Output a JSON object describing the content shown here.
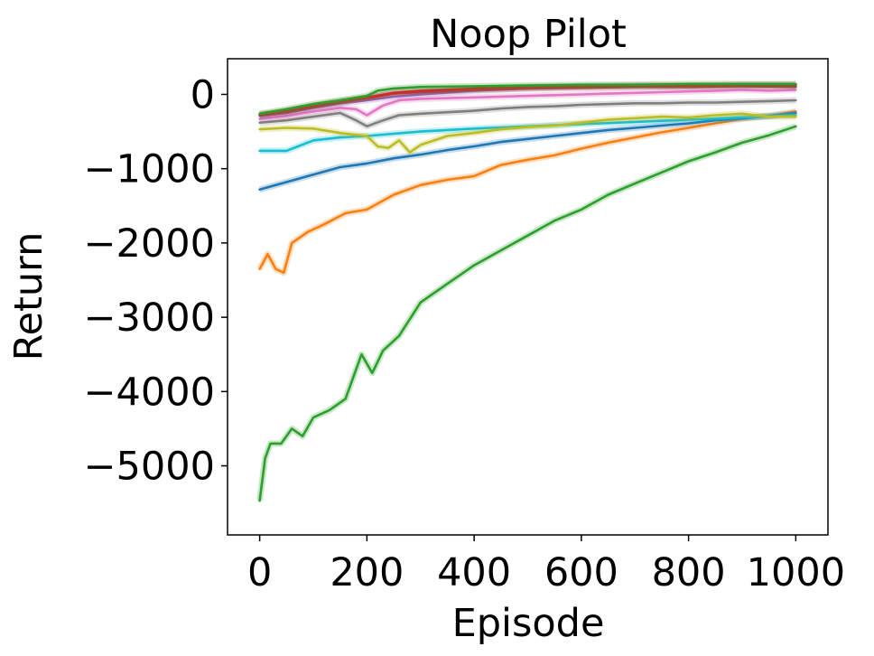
{
  "chart_data": {
    "type": "line",
    "title": "Noop Pilot",
    "xlabel": "Episode",
    "ylabel": "Return",
    "xlim": [
      -60,
      1060
    ],
    "ylim": [
      -5930,
      480
    ],
    "xticks": [
      0,
      200,
      400,
      600,
      800,
      1000
    ],
    "xtick_labels": [
      "0",
      "200",
      "400",
      "600",
      "800",
      "1000"
    ],
    "yticks": [
      0,
      -1000,
      -2000,
      -3000,
      -4000,
      -5000
    ],
    "ytick_labels": [
      "0",
      "−1000",
      "−2000",
      "−3000",
      "−4000",
      "−5000"
    ],
    "grid": false,
    "legend": "none",
    "series": [
      {
        "color": "#2ca02c",
        "x": [
          0,
          10,
          20,
          40,
          60,
          80,
          100,
          130,
          160,
          190,
          210,
          230,
          260,
          300,
          350,
          400,
          450,
          500,
          550,
          600,
          650,
          700,
          750,
          800,
          850,
          900,
          950,
          1000
        ],
        "y": [
          -5470,
          -4900,
          -4700,
          -4700,
          -4500,
          -4600,
          -4350,
          -4250,
          -4100,
          -3500,
          -3750,
          -3450,
          -3250,
          -2800,
          -2550,
          -2300,
          -2100,
          -1900,
          -1700,
          -1550,
          -1350,
          -1200,
          -1050,
          -900,
          -780,
          -650,
          -550,
          -430
        ]
      },
      {
        "color": "#ff7f0e",
        "x": [
          0,
          15,
          30,
          45,
          60,
          90,
          120,
          160,
          200,
          250,
          300,
          350,
          400,
          450,
          500,
          550,
          600,
          650,
          700,
          750,
          800,
          850,
          900,
          950,
          1000
        ],
        "y": [
          -2350,
          -2150,
          -2350,
          -2400,
          -2000,
          -1850,
          -1750,
          -1600,
          -1550,
          -1350,
          -1220,
          -1150,
          -1100,
          -950,
          -880,
          -820,
          -730,
          -650,
          -580,
          -510,
          -450,
          -390,
          -330,
          -290,
          -230
        ]
      },
      {
        "color": "#1f77b4",
        "x": [
          0,
          50,
          100,
          150,
          200,
          250,
          300,
          350,
          400,
          450,
          500,
          550,
          600,
          650,
          700,
          750,
          800,
          850,
          900,
          950,
          1000
        ],
        "y": [
          -1280,
          -1180,
          -1080,
          -980,
          -930,
          -860,
          -810,
          -750,
          -700,
          -640,
          -600,
          -560,
          -520,
          -480,
          -450,
          -420,
          -390,
          -350,
          -320,
          -290,
          -250
        ]
      },
      {
        "color": "#17becf",
        "x": [
          0,
          50,
          100,
          150,
          200,
          250,
          300,
          400,
          500,
          600,
          700,
          800,
          900,
          1000
        ],
        "y": [
          -760,
          -760,
          -620,
          -580,
          -560,
          -530,
          -500,
          -460,
          -430,
          -400,
          -370,
          -340,
          -310,
          -280
        ]
      },
      {
        "color": "#bcbd22",
        "x": [
          0,
          50,
          100,
          150,
          200,
          220,
          240,
          260,
          280,
          300,
          350,
          400,
          450,
          500,
          550,
          600,
          650,
          700,
          750,
          800,
          850,
          900,
          950,
          1000
        ],
        "y": [
          -470,
          -450,
          -460,
          -520,
          -560,
          -700,
          -720,
          -620,
          -780,
          -680,
          -560,
          -520,
          -470,
          -440,
          -420,
          -380,
          -340,
          -320,
          -300,
          -310,
          -280,
          -260,
          -300,
          -300
        ]
      },
      {
        "color": "#7f7f7f",
        "x": [
          0,
          50,
          100,
          150,
          180,
          200,
          230,
          260,
          300,
          350,
          400,
          450,
          500,
          550,
          600,
          650,
          700,
          750,
          800,
          850,
          900,
          950,
          1000
        ],
        "y": [
          -380,
          -350,
          -300,
          -250,
          -350,
          -430,
          -350,
          -280,
          -260,
          -240,
          -220,
          -190,
          -170,
          -160,
          -140,
          -130,
          -120,
          -120,
          -110,
          -110,
          -100,
          -90,
          -80
        ]
      },
      {
        "color": "#e377c2",
        "x": [
          0,
          50,
          100,
          150,
          180,
          200,
          230,
          260,
          300,
          350,
          400,
          450,
          500,
          550,
          600,
          650,
          700,
          750,
          800,
          850,
          900,
          950,
          1000
        ],
        "y": [
          -330,
          -290,
          -230,
          -180,
          -200,
          -280,
          -150,
          -80,
          -60,
          -50,
          -40,
          -30,
          -20,
          -10,
          0,
          10,
          20,
          30,
          40,
          50,
          60,
          50,
          60
        ]
      },
      {
        "color": "#9467bd",
        "x": [
          0,
          50,
          100,
          150,
          200,
          250,
          300,
          400,
          500,
          600,
          700,
          800,
          900,
          1000
        ],
        "y": [
          -290,
          -250,
          -180,
          -120,
          -80,
          -30,
          0,
          50,
          80,
          100,
          110,
          115,
          120,
          120
        ]
      },
      {
        "color": "#8c564b",
        "x": [
          0,
          50,
          100,
          150,
          200,
          250,
          300,
          400,
          500,
          600,
          700,
          800,
          900,
          1000
        ],
        "y": [
          -280,
          -240,
          -170,
          -110,
          -50,
          10,
          30,
          60,
          80,
          90,
          100,
          100,
          110,
          100
        ]
      },
      {
        "color": "#d62728",
        "x": [
          0,
          50,
          100,
          150,
          200,
          250,
          300,
          400,
          500,
          600,
          700,
          800,
          900,
          1000
        ],
        "y": [
          -270,
          -220,
          -150,
          -90,
          -40,
          20,
          50,
          80,
          100,
          110,
          120,
          120,
          130,
          130
        ]
      },
      {
        "color": "#2ca02c",
        "x": [
          0,
          50,
          100,
          150,
          200,
          220,
          250,
          300,
          400,
          500,
          600,
          700,
          800,
          900,
          1000
        ],
        "y": [
          -260,
          -200,
          -130,
          -80,
          -20,
          50,
          80,
          100,
          110,
          120,
          130,
          130,
          140,
          140,
          140
        ]
      }
    ]
  }
}
